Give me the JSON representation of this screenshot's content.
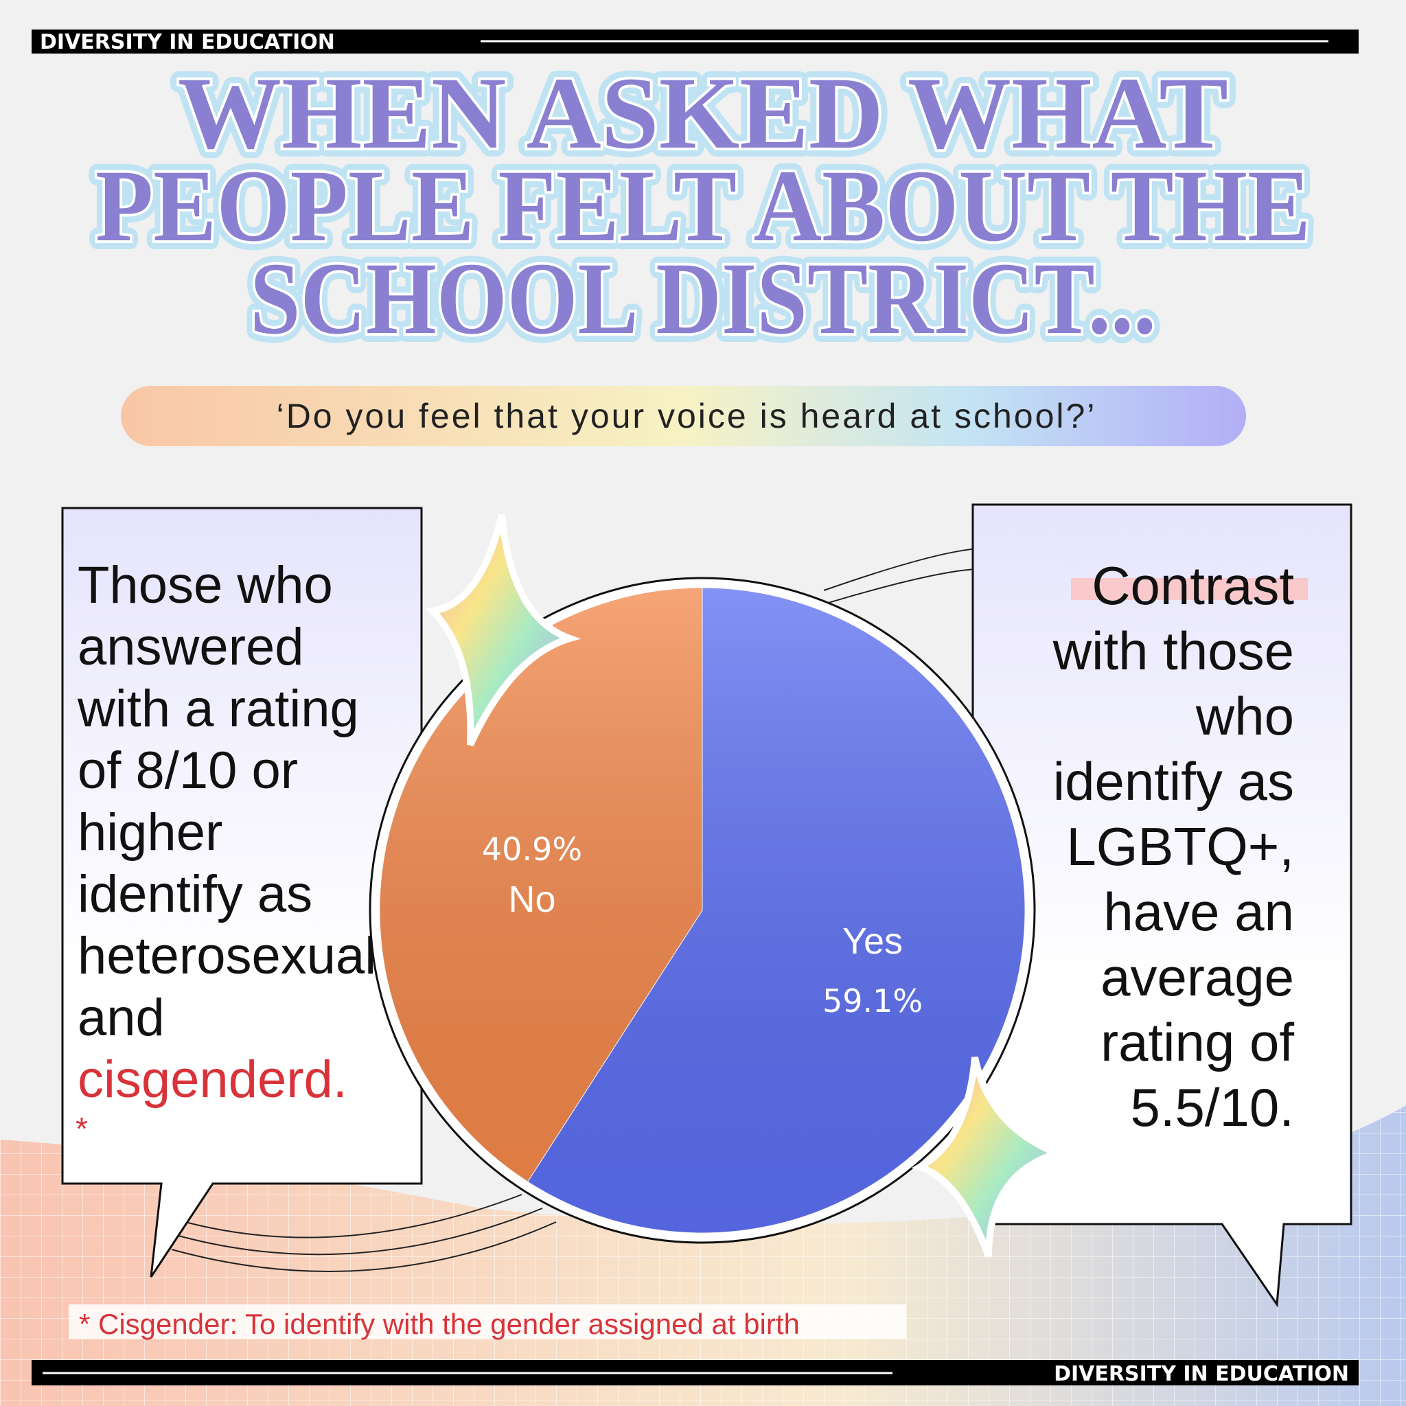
{
  "header": "DIVERSITY IN EDUCATION",
  "footer": "DIVERSITY IN EDUCATION",
  "headline": [
    "WHEN ASKED WHAT",
    "PEOPLE FELT ABOUT THE",
    "SCHOOL DISTRICT..."
  ],
  "chart_data": {
    "type": "pie",
    "title": "‘Do you feel that your voice is heard at school?’",
    "categories": [
      "Yes",
      "No"
    ],
    "values": [
      59.1,
      40.9
    ],
    "value_labels": [
      "59.1%",
      "40.9%"
    ],
    "colors": [
      "#5b6ef2",
      "#f3874a"
    ]
  },
  "left_bubble": {
    "lines": [
      "Those who",
      "answered",
      "with a rating",
      "of 8/10 or",
      "higher",
      "identify as",
      "heterosexual",
      "and"
    ],
    "highlight": "cisgenderd.",
    "asterisk": "*"
  },
  "right_bubble": {
    "highlight": "Contrast",
    "lines": [
      "with those",
      "who",
      "identify as",
      "LGBTQ+,",
      "have an",
      "average",
      "rating of",
      "5.5/10."
    ]
  },
  "footnote": "* Cisgender: To identify with the gender assigned at birth"
}
